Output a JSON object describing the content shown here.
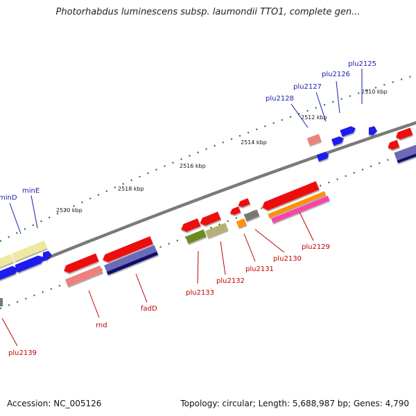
{
  "title": "Photorhabdus luminescens subsp. laumondii TTO1, complete gen...",
  "footer": {
    "accession": "Accession: NC_005126",
    "summary": "Topology: circular; Length: 5,688,987 bp; Genes: 4,790"
  },
  "colors": {
    "backbone": "#7a7a7a",
    "tick": "#1e7a1e",
    "forward_label": "#1a1aa8",
    "reverse_label": "#c00000",
    "red": "#ee1111",
    "blue": "#1a1aee",
    "pink": "#ee8080",
    "yellow": "#eee8a0",
    "olive_light": "#b8b070",
    "olive_dark": "#6a8a20",
    "orange": "#ff9000",
    "magenta": "#ff40a8",
    "grey": "#777777",
    "violet": "#6a6ab8",
    "navy": "#10106a"
  },
  "kbp_labels": [
    "2510 kbp",
    "2512 kbp",
    "2514 kbp",
    "2516 kbp",
    "2518 kbp",
    "2520 kbp"
  ],
  "gene_labels": {
    "forward": [
      "plu2125",
      "plu2126",
      "plu2127",
      "plu2128",
      "minE",
      "minD"
    ],
    "reverse": [
      "plu2129",
      "plu2130",
      "plu2131",
      "plu2132",
      "plu2133",
      "fadD",
      "rnd",
      "plu2139"
    ]
  }
}
